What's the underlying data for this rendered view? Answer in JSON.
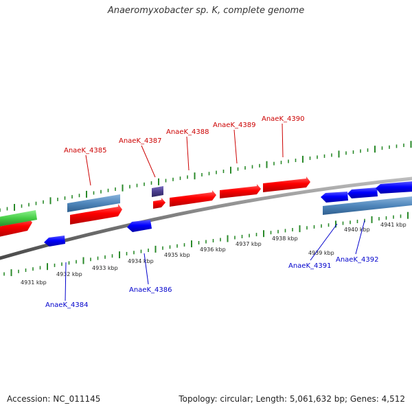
{
  "title": "Anaeromyxobacter sp. K, complete genome",
  "footer": {
    "accession": "Accession: NC_011145",
    "summary": "Topology: circular; Length: 5,061,632 bp; Genes: 4,512"
  },
  "colors": {
    "forward_gene": "#ff0000",
    "reverse_gene": "#0000ff",
    "forward_label": "#cc0000",
    "reverse_label": "#0000cc",
    "tick": "#2a8a2a",
    "backbone": "#8c8c8c",
    "rna": "#4f86bb",
    "green_gene": "#44cc44",
    "purple_gene": "#4a3d8c"
  },
  "coordinates": [
    "4931 kbp",
    "4932 kbp",
    "4933 kbp",
    "4934 kbp",
    "4935 kbp",
    "4936 kbp",
    "4937 kbp",
    "4938 kbp",
    "4939 kbp",
    "4940 kbp",
    "4941 kbp"
  ],
  "gene_labels": {
    "forward": [
      "AnaeK_4385",
      "AnaeK_4387",
      "AnaeK_4388",
      "AnaeK_4389",
      "AnaeK_4390"
    ],
    "reverse": [
      "AnaeK_4384",
      "AnaeK_4386",
      "AnaeK_4391",
      "AnaeK_4392"
    ]
  }
}
